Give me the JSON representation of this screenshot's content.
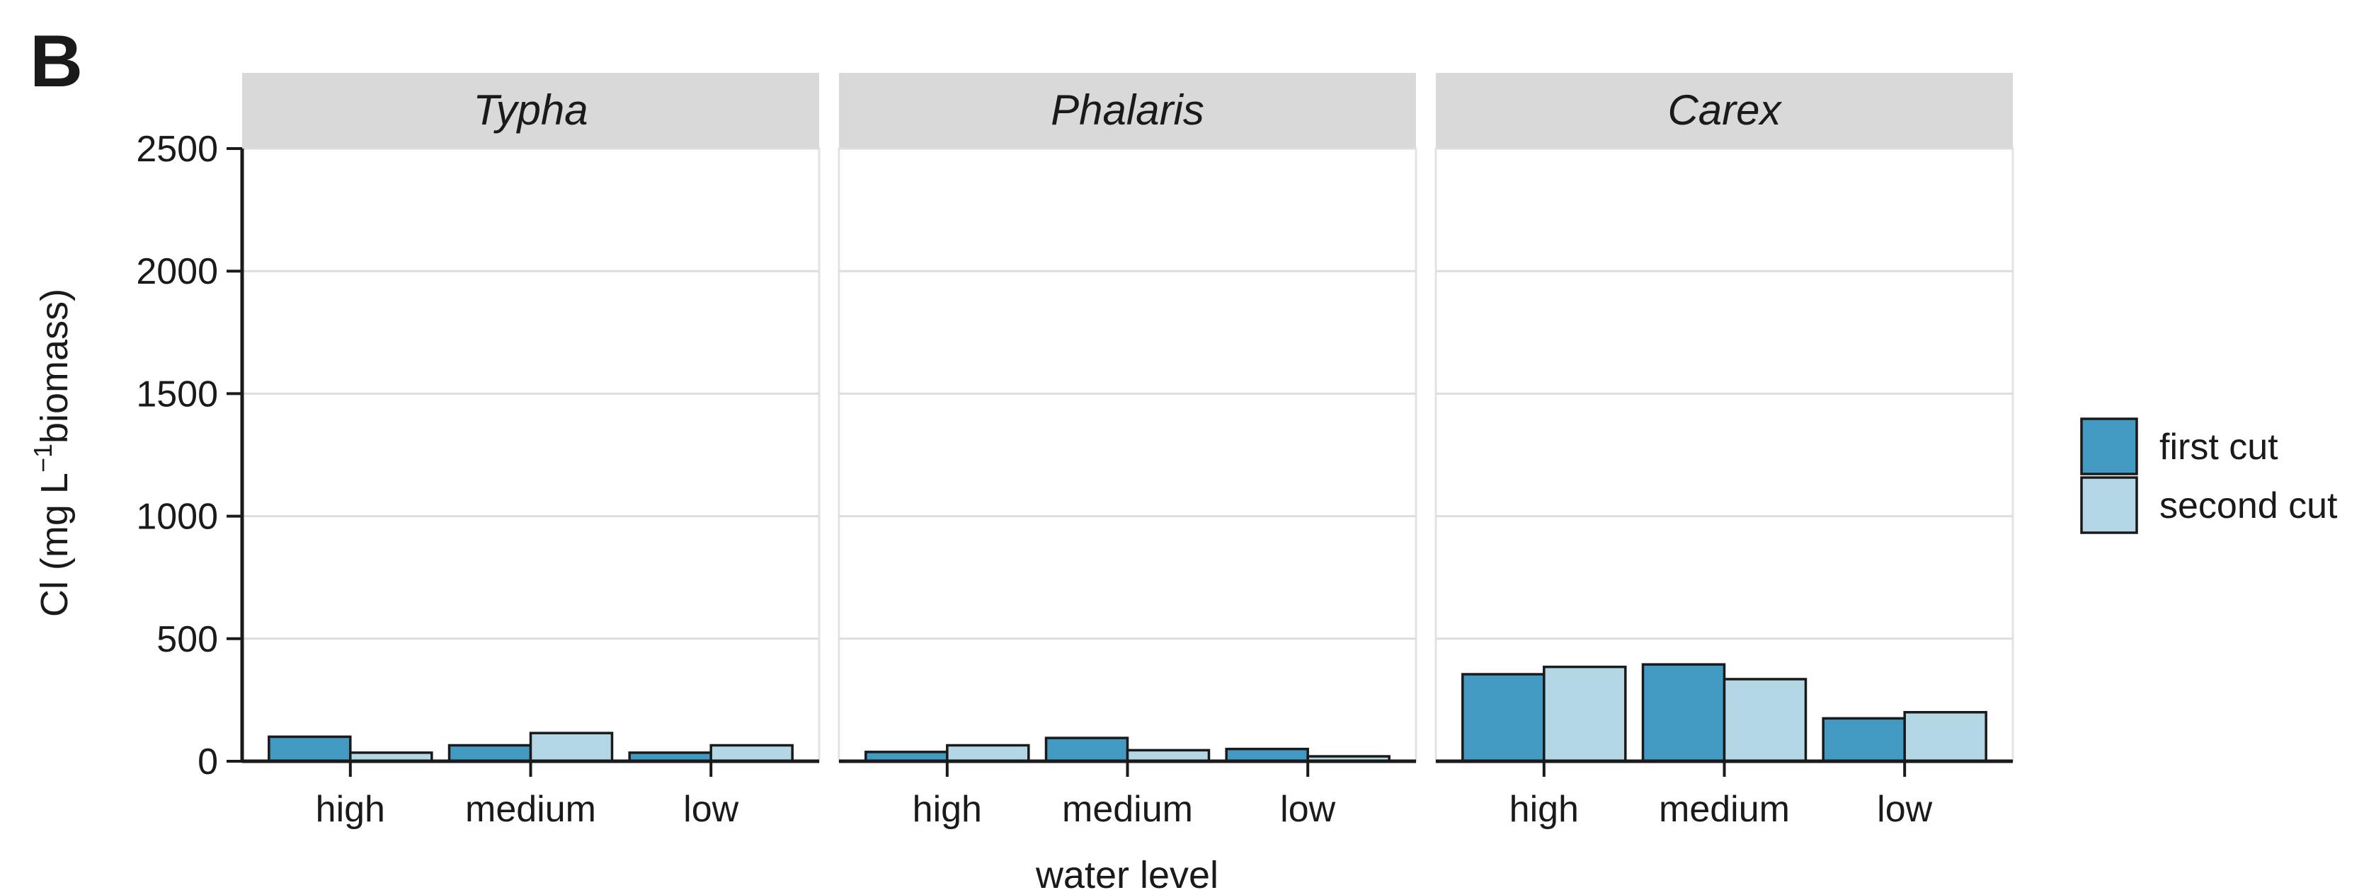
{
  "panel_label": "B",
  "chart_data": {
    "type": "bar",
    "facets": [
      "Typha",
      "Phalaris",
      "Carex"
    ],
    "categories": [
      "high",
      "medium",
      "low"
    ],
    "series": [
      {
        "name": "first cut",
        "color": "#4299c1"
      },
      {
        "name": "second cut",
        "color": "#b3d7e5"
      }
    ],
    "values": {
      "Typha": {
        "first cut": [
          100,
          65,
          35
        ],
        "second cut": [
          35,
          115,
          65
        ]
      },
      "Phalaris": {
        "first cut": [
          38,
          95,
          50
        ],
        "second cut": [
          65,
          45,
          20
        ]
      },
      "Carex": {
        "first cut": [
          355,
          395,
          175
        ],
        "second cut": [
          385,
          335,
          200
        ]
      }
    },
    "xlabel": "water level",
    "ylabel_parts": {
      "prefix": "Cl (mg L",
      "superscript": "−1",
      "suffix": "biomass)"
    },
    "ylim": [
      0,
      2500
    ],
    "yticks": [
      0,
      500,
      1000,
      1500,
      2000,
      2500
    ],
    "grid": true,
    "legend_position": "right",
    "facet_strip_color": "#d9d9d9"
  }
}
